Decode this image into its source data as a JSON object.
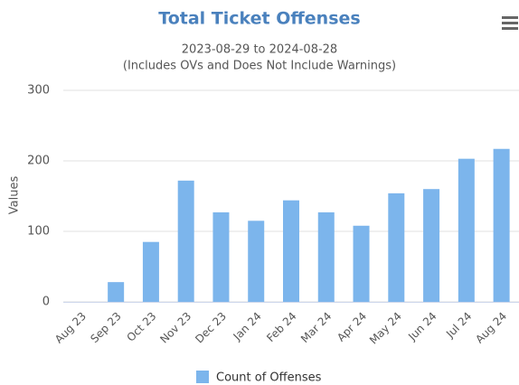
{
  "chart_data": {
    "type": "bar",
    "title": "Total Ticket Offenses",
    "subtitle": [
      "2023-08-29 to 2024-08-28",
      "(Includes OVs and Does Not Include Warnings)"
    ],
    "y_label": "Values",
    "categories": [
      "Aug 23",
      "Sep 23",
      "Oct 23",
      "Nov 23",
      "Dec 23",
      "Jan 24",
      "Feb 24",
      "Mar 24",
      "Apr 24",
      "May 24",
      "Jun 24",
      "Jul 24",
      "Aug 24"
    ],
    "series": [
      {
        "name": "Count of Offenses",
        "color": "#7cb5ec",
        "values": [
          0,
          28,
          85,
          172,
          127,
          115,
          144,
          127,
          108,
          154,
          160,
          203,
          217
        ]
      }
    ],
    "ylim": [
      0,
      300
    ],
    "yticks": [
      0,
      100,
      200,
      300
    ],
    "grid": true,
    "legend": "bottom"
  }
}
